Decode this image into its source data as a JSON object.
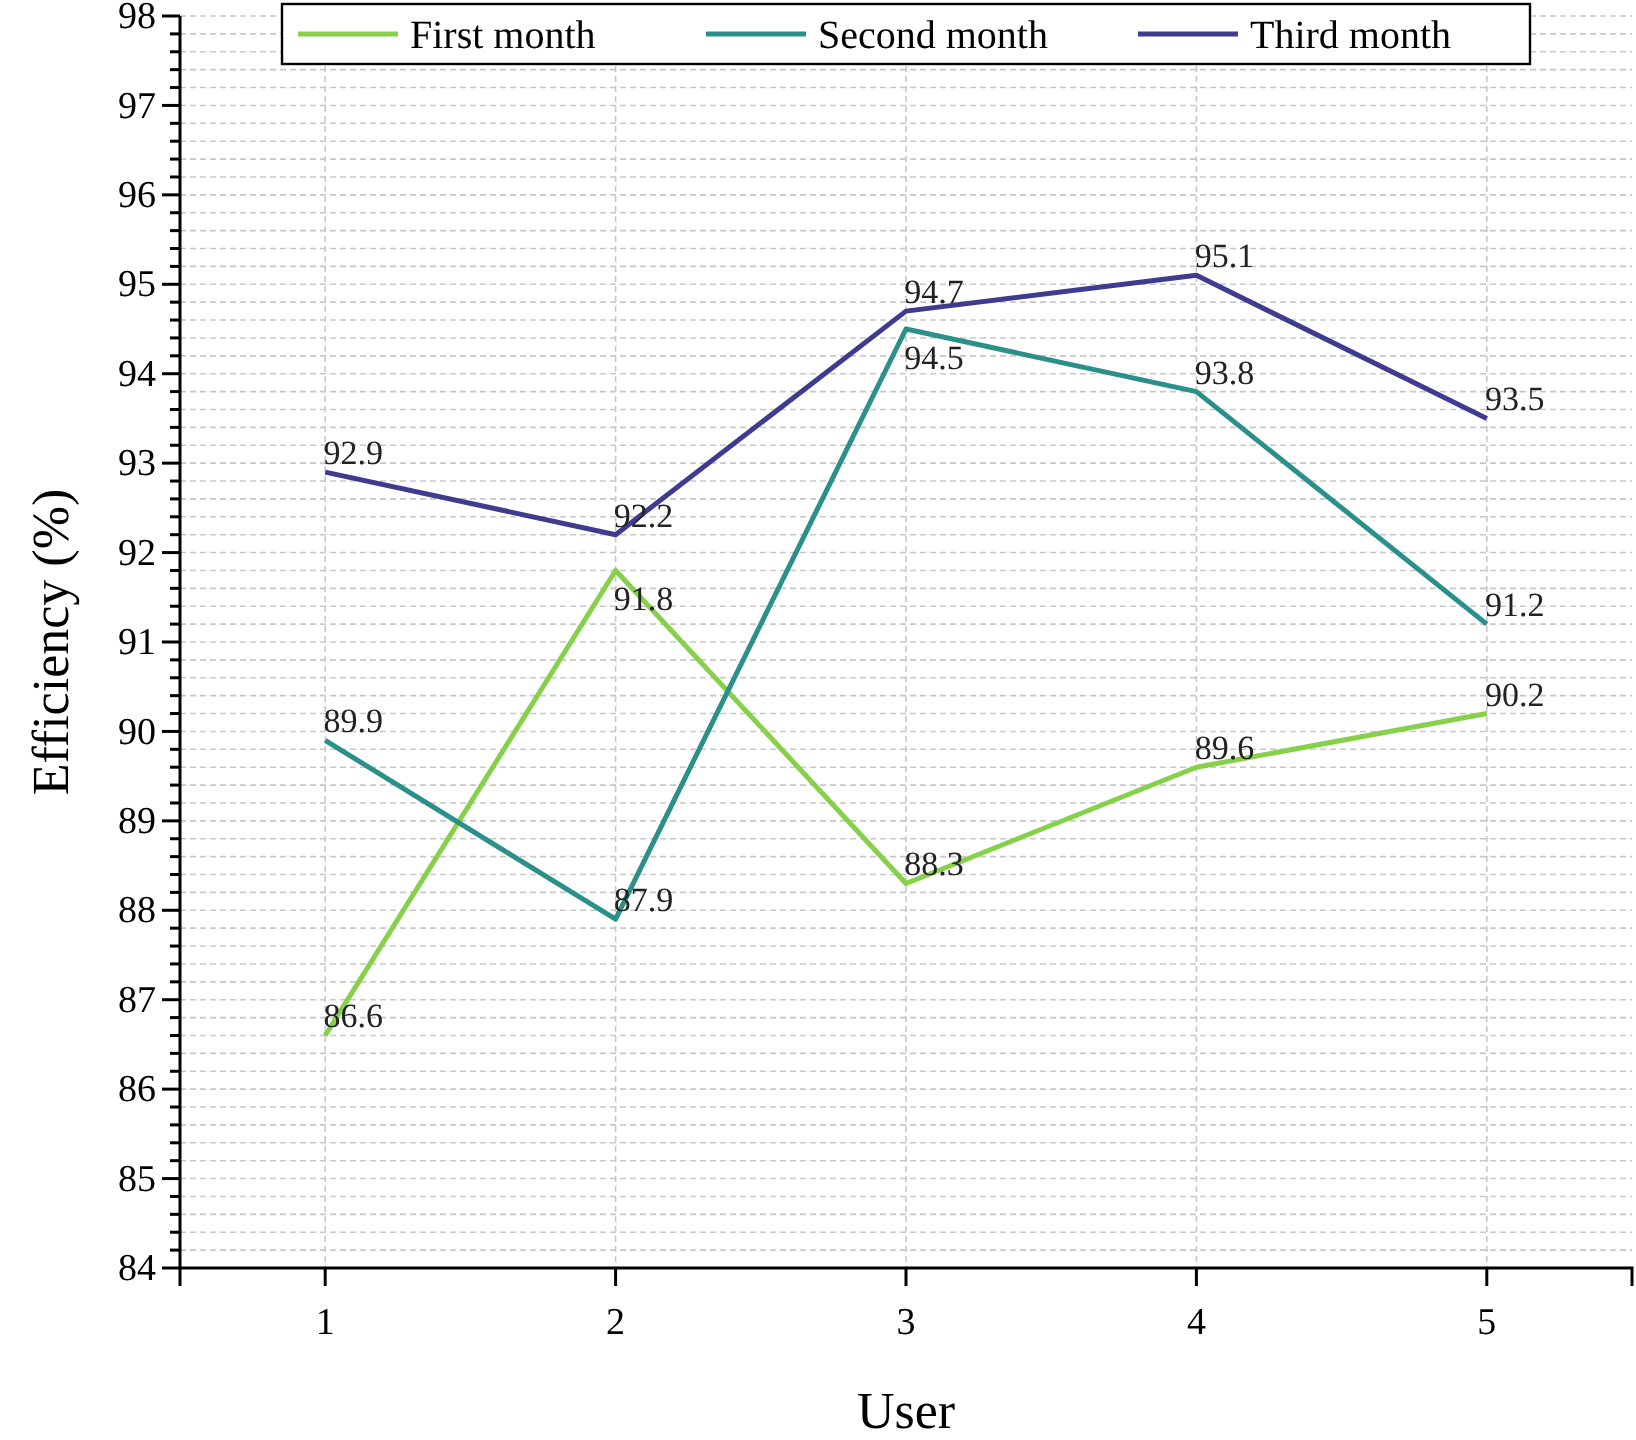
{
  "chart_data": {
    "type": "line",
    "xlabel": "User",
    "ylabel": "Efficiency (%)",
    "categories": [
      "1",
      "2",
      "3",
      "4",
      "5"
    ],
    "series": [
      {
        "name": "First month",
        "color": "#86d04a",
        "values": [
          86.6,
          91.8,
          88.3,
          89.6,
          90.2
        ]
      },
      {
        "name": "Second month",
        "color": "#2a9089",
        "values": [
          89.9,
          87.9,
          94.5,
          93.8,
          91.2
        ]
      },
      {
        "name": "Third month",
        "color": "#3f3c8f",
        "values": [
          92.9,
          92.2,
          94.7,
          95.1,
          93.5
        ]
      }
    ],
    "ylim": [
      84,
      98
    ],
    "yticks": [
      84,
      {
        "value": 84.2,
        "label": null
      },
      {
        "value": 84.4,
        "label": null
      },
      {
        "value": 84.6,
        "label": null
      },
      {
        "value": 84.8,
        "label": null
      },
      85,
      {
        "value": 85.2,
        "label": null
      },
      {
        "value": 85.4,
        "label": null
      },
      {
        "value": 85.6,
        "label": null
      },
      {
        "value": 85.8,
        "label": null
      },
      86,
      {
        "value": 86.2,
        "label": null
      },
      {
        "value": 86.4,
        "label": null
      },
      {
        "value": 86.6,
        "label": null
      },
      {
        "value": 86.8,
        "label": null
      },
      87,
      {
        "value": 87.2,
        "label": null
      },
      {
        "value": 87.4,
        "label": null
      },
      {
        "value": 87.6,
        "label": null
      },
      {
        "value": 87.8,
        "label": null
      },
      88,
      {
        "value": 88.2,
        "label": null
      },
      {
        "value": 88.4,
        "label": null
      },
      {
        "value": 88.6,
        "label": null
      },
      {
        "value": 88.8,
        "label": null
      },
      89,
      {
        "value": 89.2,
        "label": null
      },
      {
        "value": 89.4,
        "label": null
      },
      {
        "value": 89.6,
        "label": null
      },
      {
        "value": 89.8,
        "label": null
      },
      90,
      {
        "value": 90.2,
        "label": null
      },
      {
        "value": 90.4,
        "label": null
      },
      {
        "value": 90.6,
        "label": null
      },
      {
        "value": 90.8,
        "label": null
      },
      91,
      {
        "value": 91.2,
        "label": null
      },
      {
        "value": 91.4,
        "label": null
      },
      {
        "value": 91.6,
        "label": null
      },
      {
        "value": 91.8,
        "label": null
      },
      92,
      {
        "value": 92.2,
        "label": null
      },
      {
        "value": 92.4,
        "label": null
      },
      {
        "value": 92.6,
        "label": null
      },
      {
        "value": 92.8,
        "label": null
      },
      93,
      {
        "value": 93.2,
        "label": null
      },
      {
        "value": 93.4,
        "label": null
      },
      {
        "value": 93.6,
        "label": null
      },
      {
        "value": 93.8,
        "label": null
      },
      94,
      {
        "value": 94.2,
        "label": null
      },
      {
        "value": 94.4,
        "label": null
      },
      {
        "value": 94.6,
        "label": null
      },
      {
        "value": 94.8,
        "label": null
      },
      95,
      {
        "value": 95.2,
        "label": null
      },
      {
        "value": 95.4,
        "label": null
      },
      {
        "value": 95.6,
        "label": null
      },
      {
        "value": 95.8,
        "label": null
      },
      96,
      {
        "value": 96.2,
        "label": null
      },
      {
        "value": 96.4,
        "label": null
      },
      {
        "value": 96.6,
        "label": null
      },
      {
        "value": 96.8,
        "label": null
      },
      97,
      {
        "value": 97.2,
        "label": null
      },
      {
        "value": 97.4,
        "label": null
      },
      {
        "value": 97.6,
        "label": null
      },
      {
        "value": 97.8,
        "label": null
      },
      98
    ],
    "grid": true,
    "legend": "top",
    "data_labels": true,
    "marker": "none",
    "line_style": "solid"
  }
}
